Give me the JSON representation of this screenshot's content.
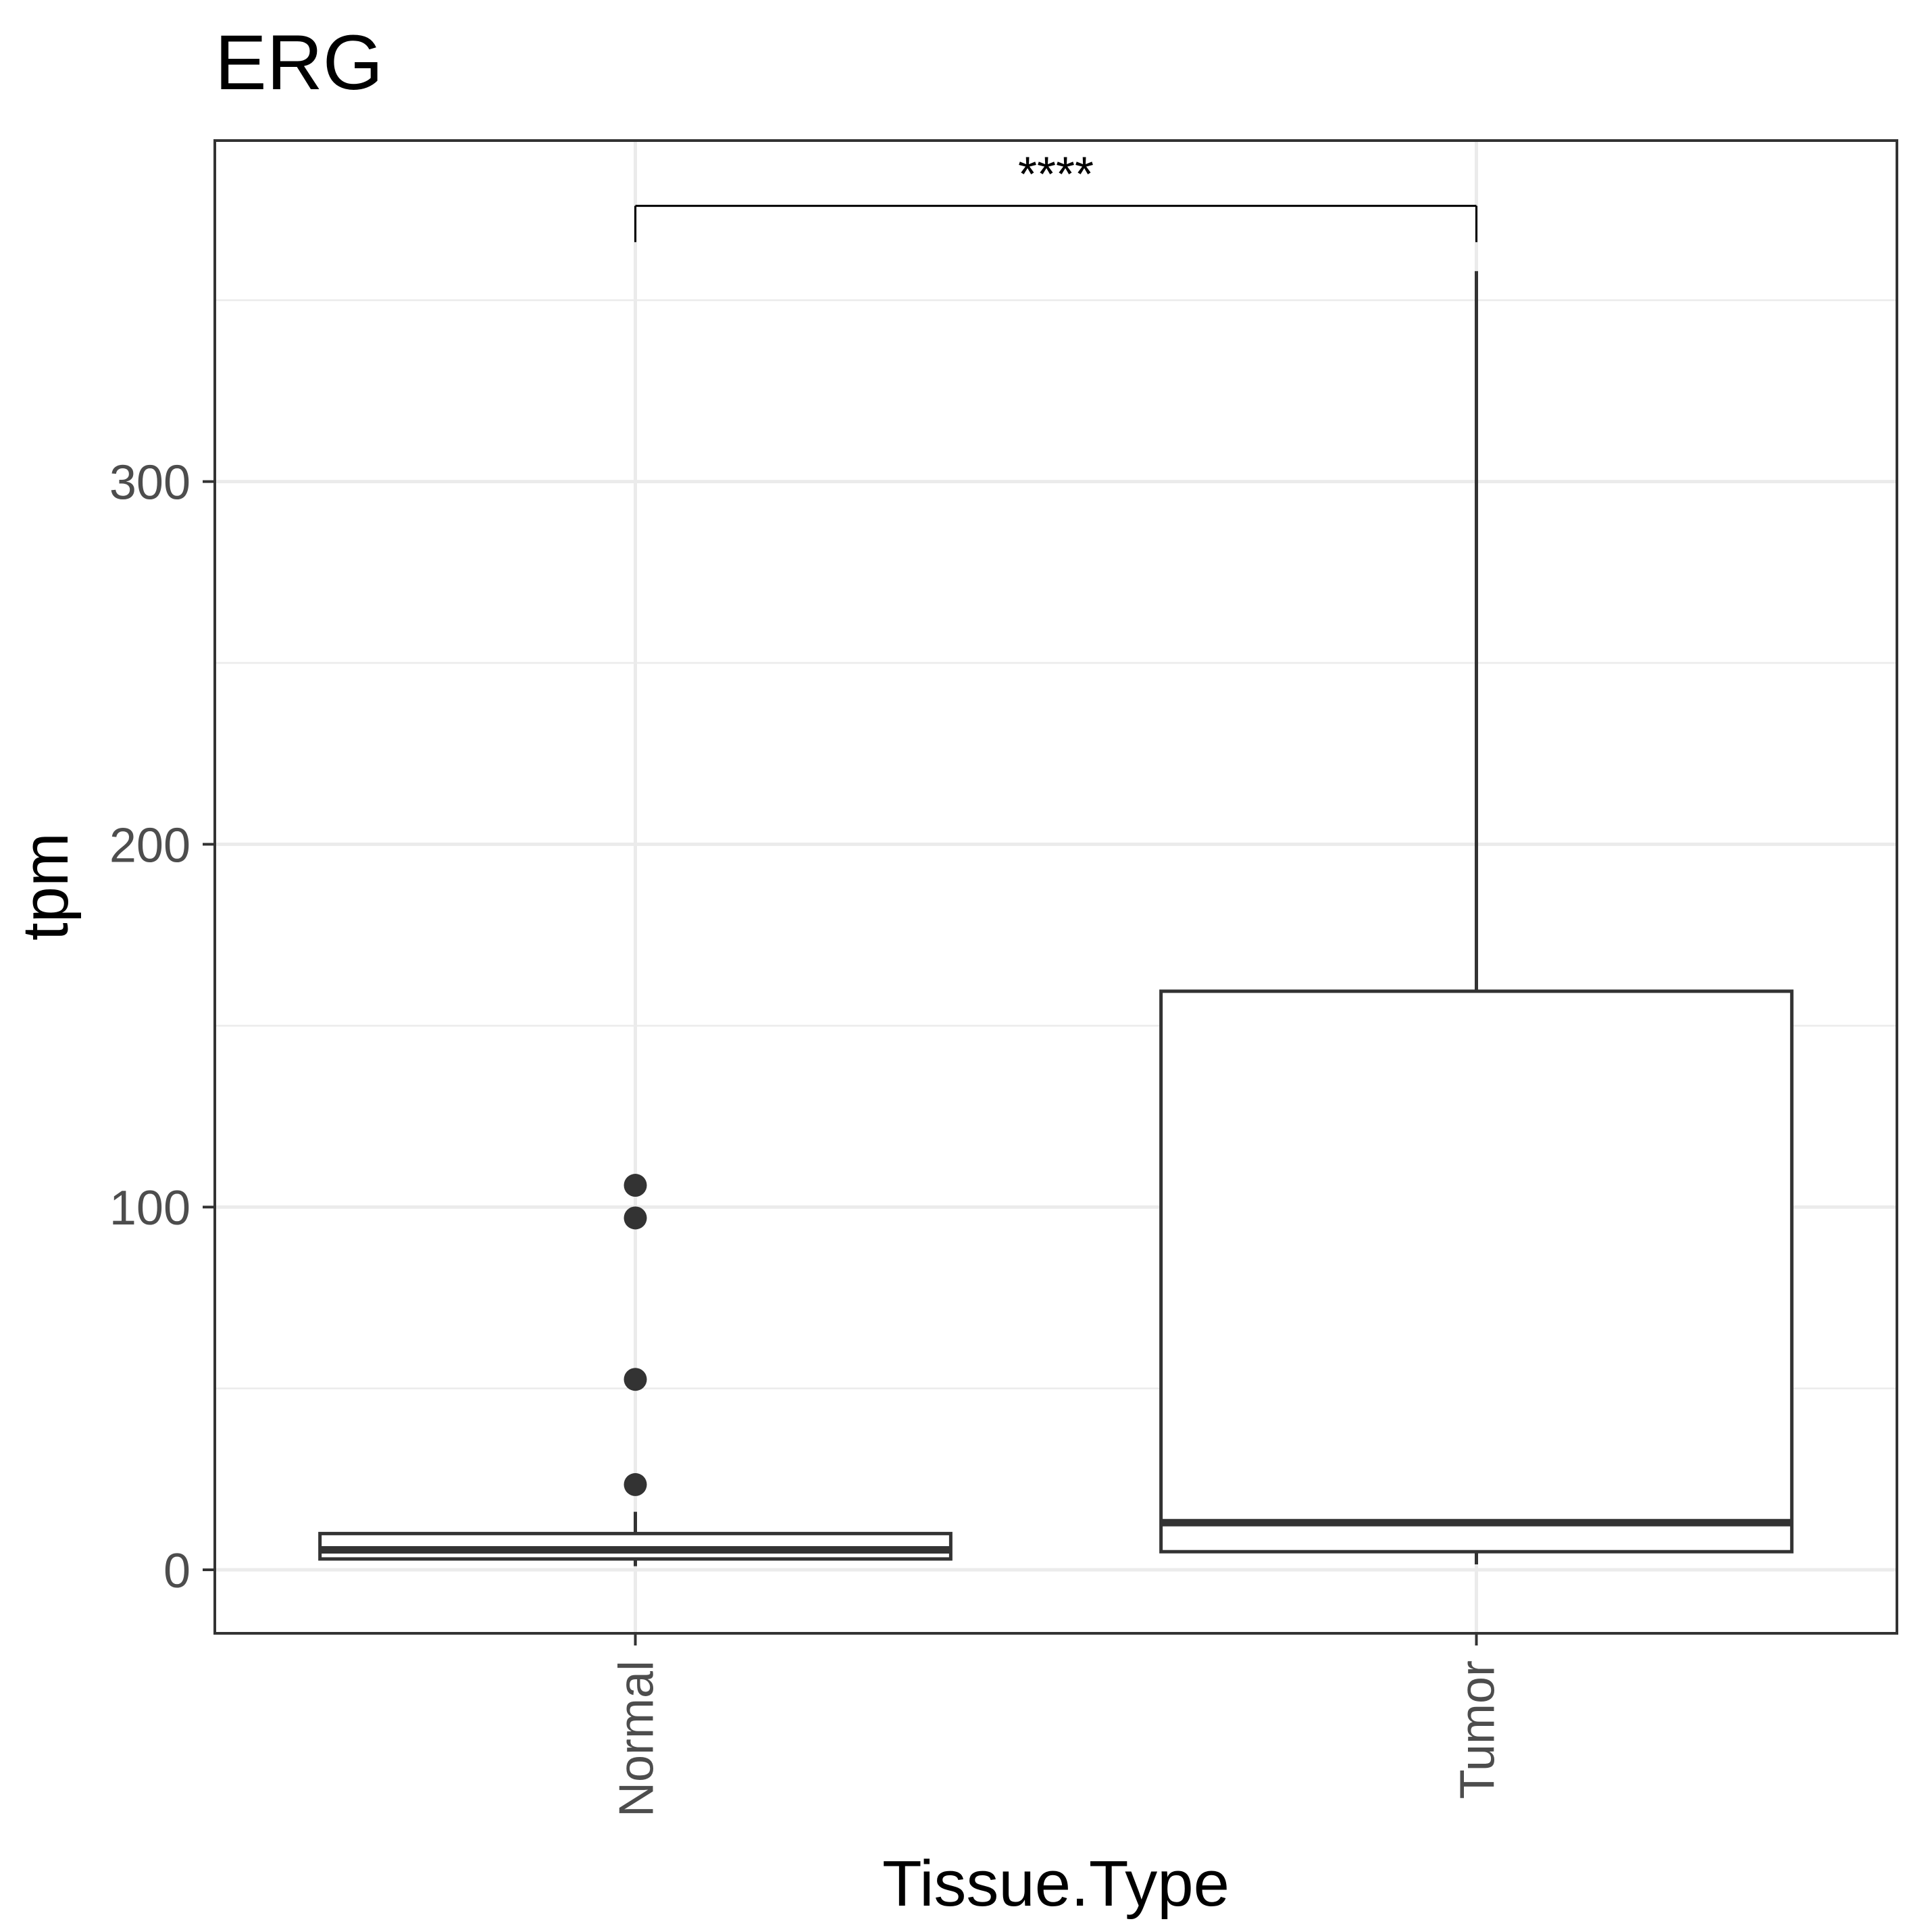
{
  "chart_data": {
    "type": "boxplot",
    "title": "ERG",
    "xlabel": "Tissue.Type",
    "ylabel": "tpm",
    "categories": [
      "Normal",
      "Tumor"
    ],
    "ylim": [
      -17.5,
      394
    ],
    "yticks": [
      0,
      100,
      200,
      300
    ],
    "grid": true,
    "legend": "none",
    "boxes": [
      {
        "name": "Normal",
        "whisker_low": 1,
        "q1": 3,
        "median": 5.5,
        "q3": 10,
        "whisker_high": 16,
        "outliers": [
          23.5,
          52.5,
          97,
          106
        ]
      },
      {
        "name": "Tumor",
        "whisker_low": 1.5,
        "q1": 5,
        "median": 13,
        "q3": 159.5,
        "whisker_high": 358
      }
    ],
    "significance": {
      "from": "Normal",
      "to": "Tumor",
      "y": 376,
      "tick_bottom": 366,
      "label": "****"
    },
    "colors": {
      "box_stroke": "#333333",
      "grid": "#ebebeb",
      "panel_border": "#333333"
    }
  }
}
